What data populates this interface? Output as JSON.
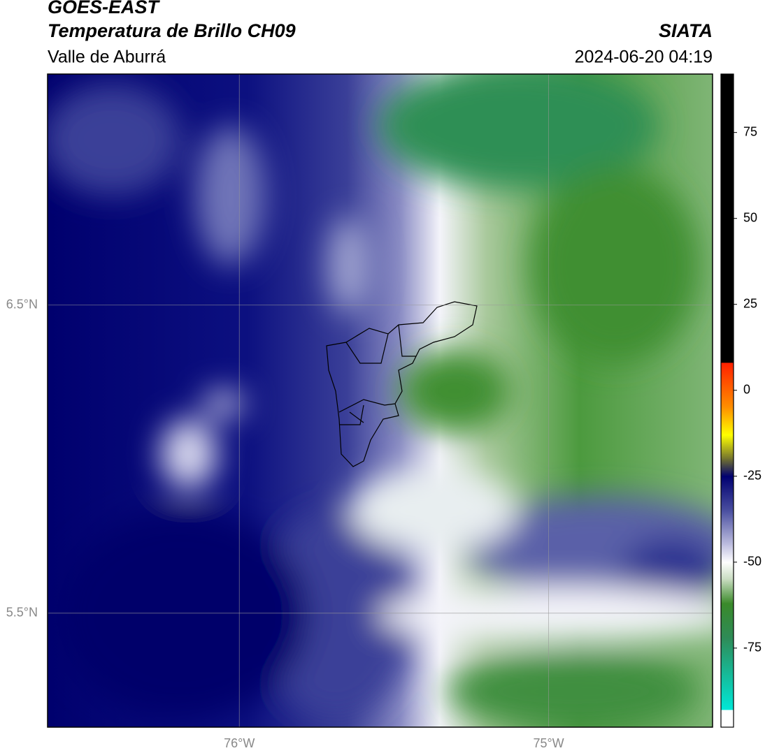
{
  "header": {
    "title": "GOES-EAST",
    "subtitle": "Temperatura de Brillo CH09",
    "region": "Valle de Aburrá",
    "source": "SIATA",
    "datetime": "2024-06-20 04:19"
  },
  "map": {
    "lonlim": [
      -76.62,
      -74.47
    ],
    "latlim": [
      5.13,
      7.25
    ],
    "lat_ticks": [
      {
        "value": 6.5,
        "label": "6.5°N"
      },
      {
        "value": 5.5,
        "label": "5.5°N"
      }
    ],
    "lon_ticks": [
      {
        "value": -76,
        "label": "76°W"
      },
      {
        "value": -75,
        "label": "75°W"
      }
    ]
  },
  "colorbar": {
    "lim": [
      -98,
      92
    ],
    "ticks": [
      75,
      50,
      25,
      0,
      -25,
      -50,
      -75
    ],
    "stops": [
      {
        "value": 92,
        "color": "#000000"
      },
      {
        "value": 8,
        "color": "#000000"
      },
      {
        "value": 8,
        "color": "#ff2000"
      },
      {
        "value": -5,
        "color": "#ff9000"
      },
      {
        "value": -13,
        "color": "#ffff00"
      },
      {
        "value": -20,
        "color": "#707030"
      },
      {
        "value": -25,
        "color": "#000070"
      },
      {
        "value": -35,
        "color": "#4a4fa0"
      },
      {
        "value": -45,
        "color": "#c0c0e0"
      },
      {
        "value": -50,
        "color": "#ffffff"
      },
      {
        "value": -55,
        "color": "#c8dcc0"
      },
      {
        "value": -62,
        "color": "#3a8a2a"
      },
      {
        "value": -72,
        "color": "#2e8b57"
      },
      {
        "value": -93,
        "color": "#00e8d8"
      },
      {
        "value": -93,
        "color": "#ffffff"
      },
      {
        "value": -98,
        "color": "#ffffff"
      }
    ]
  }
}
